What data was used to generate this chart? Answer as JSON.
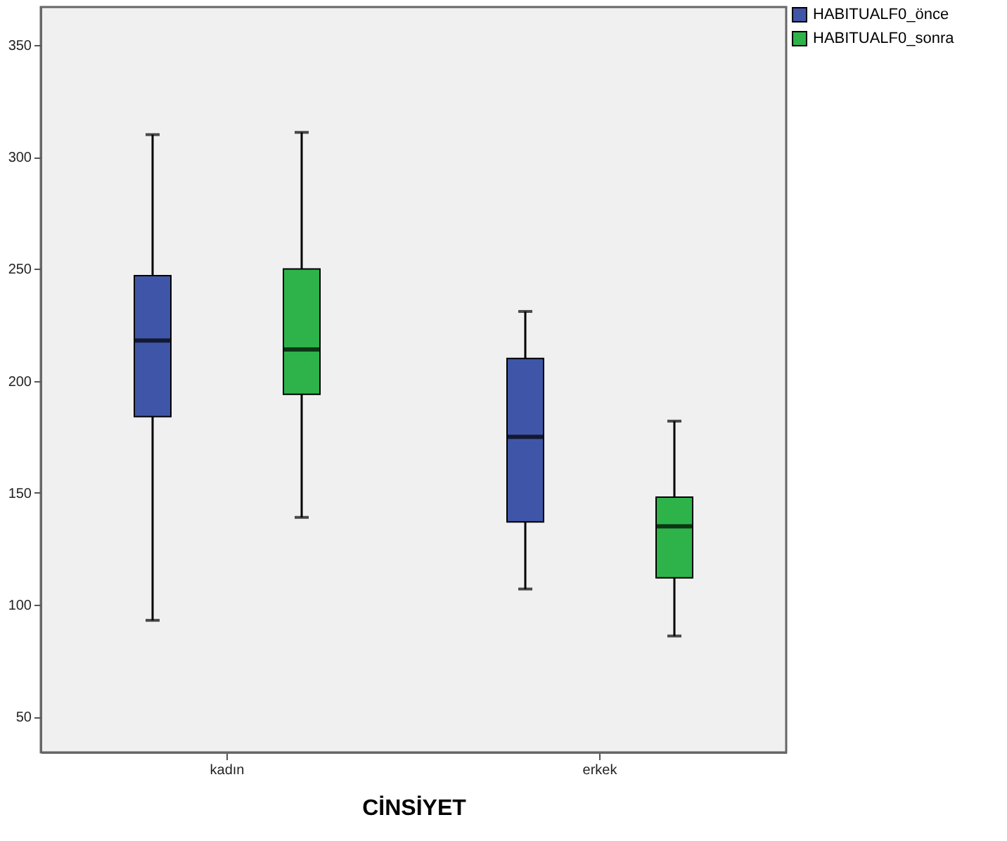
{
  "chart_data": {
    "type": "box",
    "xlabel": "CİNSİYET",
    "categories": [
      "kadın",
      "erkek"
    ],
    "series": [
      {
        "name": "HABITUALF0_önce",
        "color": "#3f56a8",
        "boxes": [
          {
            "low": 93,
            "q1": 184,
            "median": 218,
            "q3": 247,
            "high": 310
          },
          {
            "low": 107,
            "q1": 137,
            "median": 175,
            "q3": 210,
            "high": 231
          }
        ]
      },
      {
        "name": "HABITUALF0_sonra",
        "color": "#2db34a",
        "boxes": [
          {
            "low": 139,
            "q1": 194,
            "median": 214,
            "q3": 250,
            "high": 311
          },
          {
            "low": 86,
            "q1": 112,
            "median": 135,
            "q3": 148,
            "high": 182
          }
        ]
      }
    ],
    "ylim": [
      34,
      367
    ],
    "yticks": [
      50,
      100,
      150,
      200,
      250,
      300,
      350
    ],
    "grid": false,
    "legend": "top right"
  }
}
